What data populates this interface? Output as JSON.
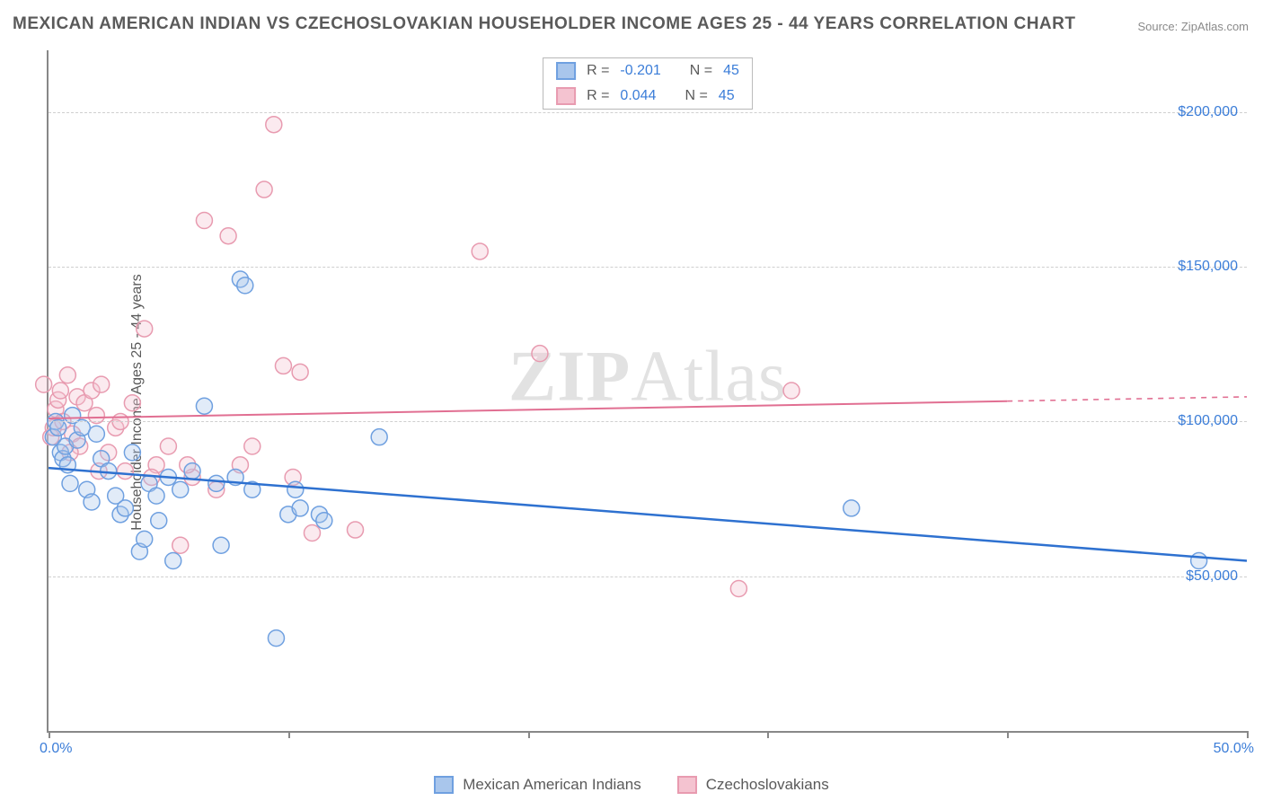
{
  "title": "MEXICAN AMERICAN INDIAN VS CZECHOSLOVAKIAN HOUSEHOLDER INCOME AGES 25 - 44 YEARS CORRELATION CHART",
  "source_label": "Source: ZipAtlas.com",
  "y_axis_label": "Householder Income Ages 25 - 44 years",
  "watermark": {
    "bold": "ZIP",
    "light": "Atlas"
  },
  "chart": {
    "type": "scatter",
    "xlim": [
      0,
      50
    ],
    "ylim": [
      0,
      220000
    ],
    "x_ticks": [
      0,
      10,
      20,
      30,
      40,
      50
    ],
    "x_tick_labels": {
      "0": "0.0%",
      "50": "50.0%"
    },
    "y_gridlines": [
      50000,
      100000,
      150000,
      200000
    ],
    "y_tick_labels": [
      "$50,000",
      "$100,000",
      "$150,000",
      "$200,000"
    ],
    "grid_color": "#cfcfcf",
    "background_color": "#ffffff",
    "axis_color": "#888888",
    "tick_label_color": "#3b7dd8",
    "marker_radius": 9,
    "marker_stroke_width": 1.5,
    "marker_fill_opacity": 0.35,
    "series": [
      {
        "name": "Mexican American Indians",
        "color_stroke": "#6fa0e0",
        "color_fill": "#a9c6ec",
        "R": -0.201,
        "N": 45,
        "trend": {
          "y_at_x0": 85000,
          "y_at_x50": 55000,
          "solid_until_x": 50
        },
        "trend_color": "#2e71d0",
        "trend_width": 2.5,
        "points": [
          [
            0.2,
            95000
          ],
          [
            0.3,
            100000
          ],
          [
            0.4,
            98000
          ],
          [
            0.5,
            90000
          ],
          [
            0.6,
            88000
          ],
          [
            0.7,
            92000
          ],
          [
            0.8,
            86000
          ],
          [
            0.9,
            80000
          ],
          [
            1.0,
            102000
          ],
          [
            1.2,
            94000
          ],
          [
            1.4,
            98000
          ],
          [
            1.6,
            78000
          ],
          [
            1.8,
            74000
          ],
          [
            2.0,
            96000
          ],
          [
            2.2,
            88000
          ],
          [
            2.5,
            84000
          ],
          [
            2.8,
            76000
          ],
          [
            3.0,
            70000
          ],
          [
            3.2,
            72000
          ],
          [
            3.5,
            90000
          ],
          [
            3.8,
            58000
          ],
          [
            4.0,
            62000
          ],
          [
            4.2,
            80000
          ],
          [
            4.5,
            76000
          ],
          [
            5.0,
            82000
          ],
          [
            5.2,
            55000
          ],
          [
            5.5,
            78000
          ],
          [
            6.0,
            84000
          ],
          [
            6.5,
            105000
          ],
          [
            7.0,
            80000
          ],
          [
            7.2,
            60000
          ],
          [
            7.8,
            82000
          ],
          [
            8.0,
            146000
          ],
          [
            8.2,
            144000
          ],
          [
            8.5,
            78000
          ],
          [
            9.5,
            30000
          ],
          [
            10.0,
            70000
          ],
          [
            10.3,
            78000
          ],
          [
            10.5,
            72000
          ],
          [
            11.3,
            70000
          ],
          [
            11.5,
            68000
          ],
          [
            13.8,
            95000
          ],
          [
            33.5,
            72000
          ],
          [
            48.0,
            55000
          ],
          [
            4.6,
            68000
          ]
        ]
      },
      {
        "name": "Czechoslovakians",
        "color_stroke": "#e89bb0",
        "color_fill": "#f4c3d0",
        "R": 0.044,
        "N": 45,
        "trend": {
          "y_at_x0": 101000,
          "y_at_x50": 108000,
          "solid_until_x": 40
        },
        "trend_color": "#e16f92",
        "trend_width": 2,
        "points": [
          [
            -0.2,
            112000
          ],
          [
            0.1,
            95000
          ],
          [
            0.2,
            98000
          ],
          [
            0.3,
            104000
          ],
          [
            0.4,
            107000
          ],
          [
            0.5,
            110000
          ],
          [
            0.6,
            100000
          ],
          [
            0.8,
            115000
          ],
          [
            1.0,
            96000
          ],
          [
            1.2,
            108000
          ],
          [
            1.5,
            106000
          ],
          [
            1.8,
            110000
          ],
          [
            2.0,
            102000
          ],
          [
            2.2,
            112000
          ],
          [
            2.5,
            90000
          ],
          [
            2.8,
            98000
          ],
          [
            3.0,
            100000
          ],
          [
            3.5,
            106000
          ],
          [
            4.0,
            130000
          ],
          [
            4.5,
            86000
          ],
          [
            5.0,
            92000
          ],
          [
            5.5,
            60000
          ],
          [
            6.0,
            82000
          ],
          [
            6.5,
            165000
          ],
          [
            7.0,
            78000
          ],
          [
            7.5,
            160000
          ],
          [
            8.0,
            86000
          ],
          [
            8.5,
            92000
          ],
          [
            9.0,
            175000
          ],
          [
            9.4,
            196000
          ],
          [
            9.8,
            118000
          ],
          [
            10.2,
            82000
          ],
          [
            10.5,
            116000
          ],
          [
            11.0,
            64000
          ],
          [
            12.8,
            65000
          ],
          [
            18.0,
            155000
          ],
          [
            20.5,
            122000
          ],
          [
            28.8,
            46000
          ],
          [
            31.0,
            110000
          ],
          [
            3.2,
            84000
          ],
          [
            1.3,
            92000
          ],
          [
            0.9,
            90000
          ],
          [
            2.1,
            84000
          ],
          [
            4.3,
            82000
          ],
          [
            5.8,
            86000
          ]
        ]
      }
    ]
  },
  "stat_legend": {
    "rows": [
      {
        "swatch_fill": "#a9c6ec",
        "swatch_stroke": "#6fa0e0",
        "R_label": "R =",
        "R": "-0.201",
        "N_label": "N =",
        "N": "45"
      },
      {
        "swatch_fill": "#f4c3d0",
        "swatch_stroke": "#e89bb0",
        "R_label": "R =",
        "R": "0.044",
        "N_label": "N =",
        "N": "45"
      }
    ]
  },
  "bottom_legend": [
    {
      "swatch_fill": "#a9c6ec",
      "swatch_stroke": "#6fa0e0",
      "label": "Mexican American Indians"
    },
    {
      "swatch_fill": "#f4c3d0",
      "swatch_stroke": "#e89bb0",
      "label": "Czechoslovakians"
    }
  ]
}
